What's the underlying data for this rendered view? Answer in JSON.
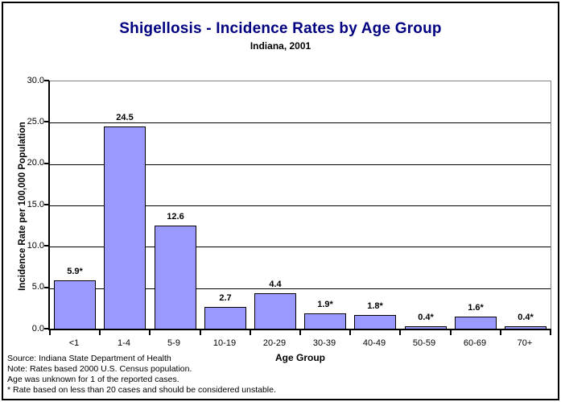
{
  "chart_data": {
    "type": "bar",
    "title": "Shigellosis - Incidence Rates by Age Group",
    "subtitle": "Indiana, 2001",
    "categories": [
      "<1",
      "1-4",
      "5-9",
      "10-19",
      "20-29",
      "30-39",
      "40-49",
      "50-59",
      "60-69",
      "70+"
    ],
    "values": [
      5.9,
      24.5,
      12.6,
      2.7,
      4.4,
      1.9,
      1.8,
      0.4,
      1.6,
      0.4
    ],
    "bar_labels": [
      "5.9*",
      "24.5",
      "12.6",
      "2.7",
      "4.4",
      "1.9*",
      "1.8*",
      "0.4*",
      "1.6*",
      "0.4*"
    ],
    "xlabel": "Age Group",
    "ylabel": "Incidence Rate per 100,000 Population",
    "ylim": [
      0,
      30
    ],
    "ytick_step": 5,
    "ytick_labels": [
      "0.0",
      "5.0",
      "10.0",
      "15.0",
      "20.0",
      "25.0",
      "30.0"
    ],
    "grid": true,
    "legend": "none",
    "bar_color": "#9999FF",
    "bar_border_color": "#000000",
    "title_color": "#000080",
    "plot_border_color": "#848484"
  },
  "footnotes": [
    "Source: Indiana State Department of Health",
    "Note: Rates based 2000 U.S. Census population.",
    "Age was unknown for 1 of the reported cases.",
    "* Rate based on less than 20 cases and should be considered unstable."
  ]
}
